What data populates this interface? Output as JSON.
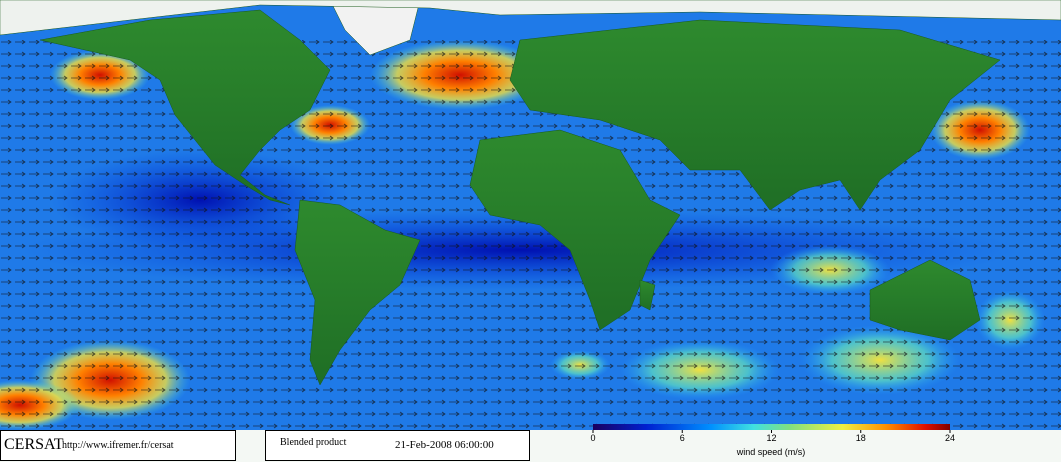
{
  "brand": "CERSAT",
  "url": "http://www.ifremer.fr/cersat",
  "product": "Blended product",
  "date": "21-Feb-2008 06:00:00",
  "colorbar": {
    "lim": [
      0,
      24
    ],
    "ticks": [
      0,
      6,
      12,
      18,
      24
    ],
    "label": "wind speed (m/s)"
  }
}
